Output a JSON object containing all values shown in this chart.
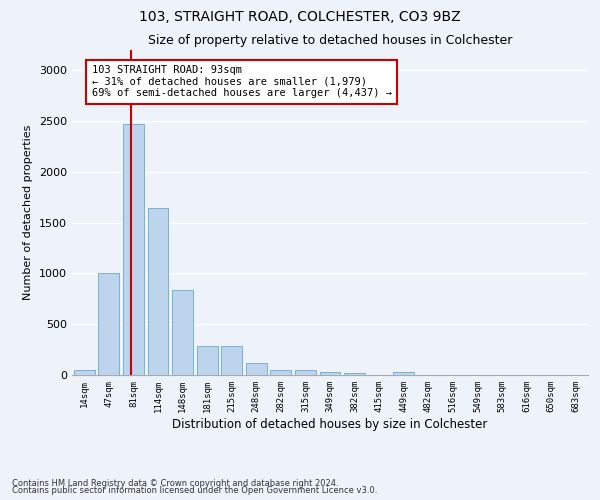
{
  "title1": "103, STRAIGHT ROAD, COLCHESTER, CO3 9BZ",
  "title2": "Size of property relative to detached houses in Colchester",
  "xlabel": "Distribution of detached houses by size in Colchester",
  "ylabel": "Number of detached properties",
  "footnote1": "Contains HM Land Registry data © Crown copyright and database right 2024.",
  "footnote2": "Contains public sector information licensed under the Open Government Licence v3.0.",
  "categories": [
    "14sqm",
    "47sqm",
    "81sqm",
    "114sqm",
    "148sqm",
    "181sqm",
    "215sqm",
    "248sqm",
    "282sqm",
    "315sqm",
    "349sqm",
    "382sqm",
    "415sqm",
    "449sqm",
    "482sqm",
    "516sqm",
    "549sqm",
    "583sqm",
    "616sqm",
    "650sqm",
    "683sqm"
  ],
  "values": [
    50,
    1000,
    2470,
    1640,
    840,
    290,
    290,
    120,
    50,
    50,
    30,
    20,
    0,
    30,
    0,
    0,
    0,
    0,
    0,
    0,
    0
  ],
  "bar_color": "#bcd4ec",
  "bar_edgecolor": "#7aafd4",
  "vline_index": 2,
  "vline_color": "#cc0000",
  "annotation_text": "103 STRAIGHT ROAD: 93sqm\n← 31% of detached houses are smaller (1,979)\n69% of semi-detached houses are larger (4,437) →",
  "annotation_box_color": "#ffffff",
  "annotation_box_edgecolor": "#cc0000",
  "ylim": [
    0,
    3200
  ],
  "yticks": [
    0,
    500,
    1000,
    1500,
    2000,
    2500,
    3000
  ],
  "background_color": "#eef2f9",
  "grid_color": "#ffffff"
}
